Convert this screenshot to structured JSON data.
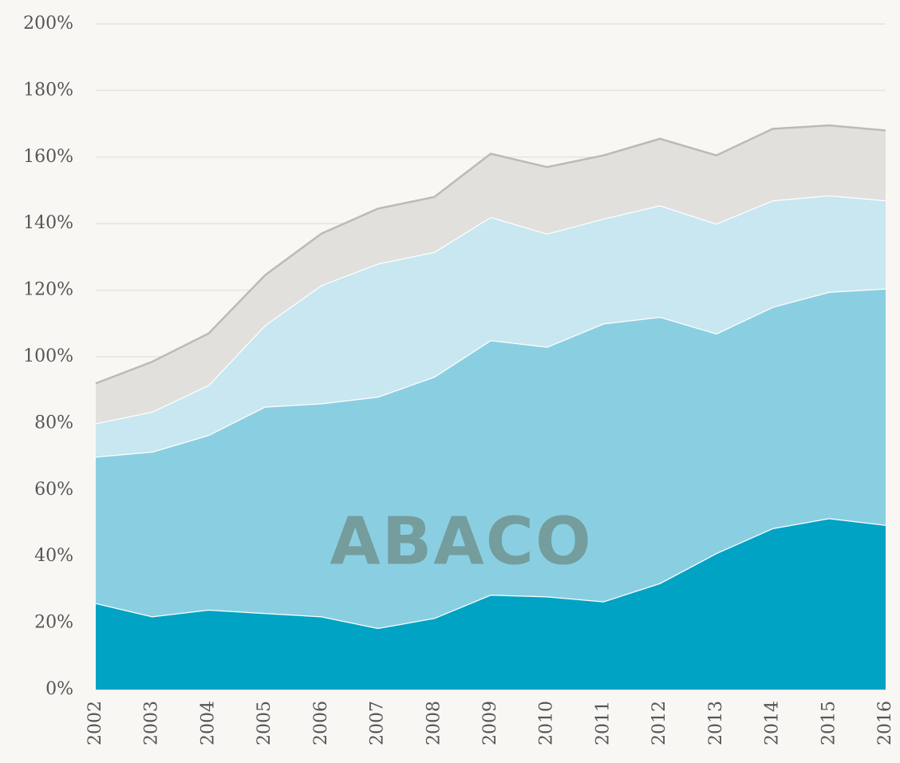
{
  "chart_data": {
    "type": "stacked_area",
    "watermark": "ABACO",
    "x": [
      2002,
      2003,
      2004,
      2005,
      2006,
      2007,
      2008,
      2009,
      2010,
      2011,
      2012,
      2013,
      2014,
      2015,
      2016
    ],
    "xlim": [
      2002,
      2016
    ],
    "xticks": [
      2002,
      2003,
      2004,
      2005,
      2006,
      2007,
      2008,
      2009,
      2010,
      2011,
      2012,
      2013,
      2014,
      2015,
      2016
    ],
    "ylim": [
      0,
      200
    ],
    "yticks": [
      {
        "value": 0,
        "label": "0%"
      },
      {
        "value": 20,
        "label": "20%"
      },
      {
        "value": 40,
        "label": "40%"
      },
      {
        "value": 60,
        "label": "60%"
      },
      {
        "value": 80,
        "label": "80%"
      },
      {
        "value": 100,
        "label": "100%"
      },
      {
        "value": 120,
        "label": "120%"
      },
      {
        "value": 140,
        "label": "140%"
      },
      {
        "value": 160,
        "label": "160%"
      },
      {
        "value": 180,
        "label": "180%"
      },
      {
        "value": 200,
        "label": "200%"
      }
    ],
    "grid": true,
    "series": [
      {
        "color": "#00a3c4",
        "values": [
          26,
          22,
          24,
          23,
          22,
          18.5,
          21.5,
          28.5,
          28,
          26.5,
          32,
          41,
          48.5,
          51.5,
          49.5
        ]
      },
      {
        "color": "#8acfe1",
        "values": [
          44,
          49.5,
          52.5,
          62,
          64,
          69.5,
          72.5,
          76.5,
          75,
          83.5,
          80,
          66,
          66.5,
          68,
          71
        ]
      },
      {
        "color": "#c8e7f0",
        "values": [
          10,
          12,
          15,
          24.5,
          35.5,
          40,
          37.5,
          37,
          34,
          31.5,
          33.5,
          33,
          32,
          29,
          26.5
        ]
      },
      {
        "color": "#e2e0dd",
        "values": [
          12,
          15,
          15.5,
          15,
          15.5,
          16.5,
          16.5,
          19,
          20,
          19,
          20,
          20.5,
          21.5,
          21,
          21
        ]
      }
    ]
  }
}
